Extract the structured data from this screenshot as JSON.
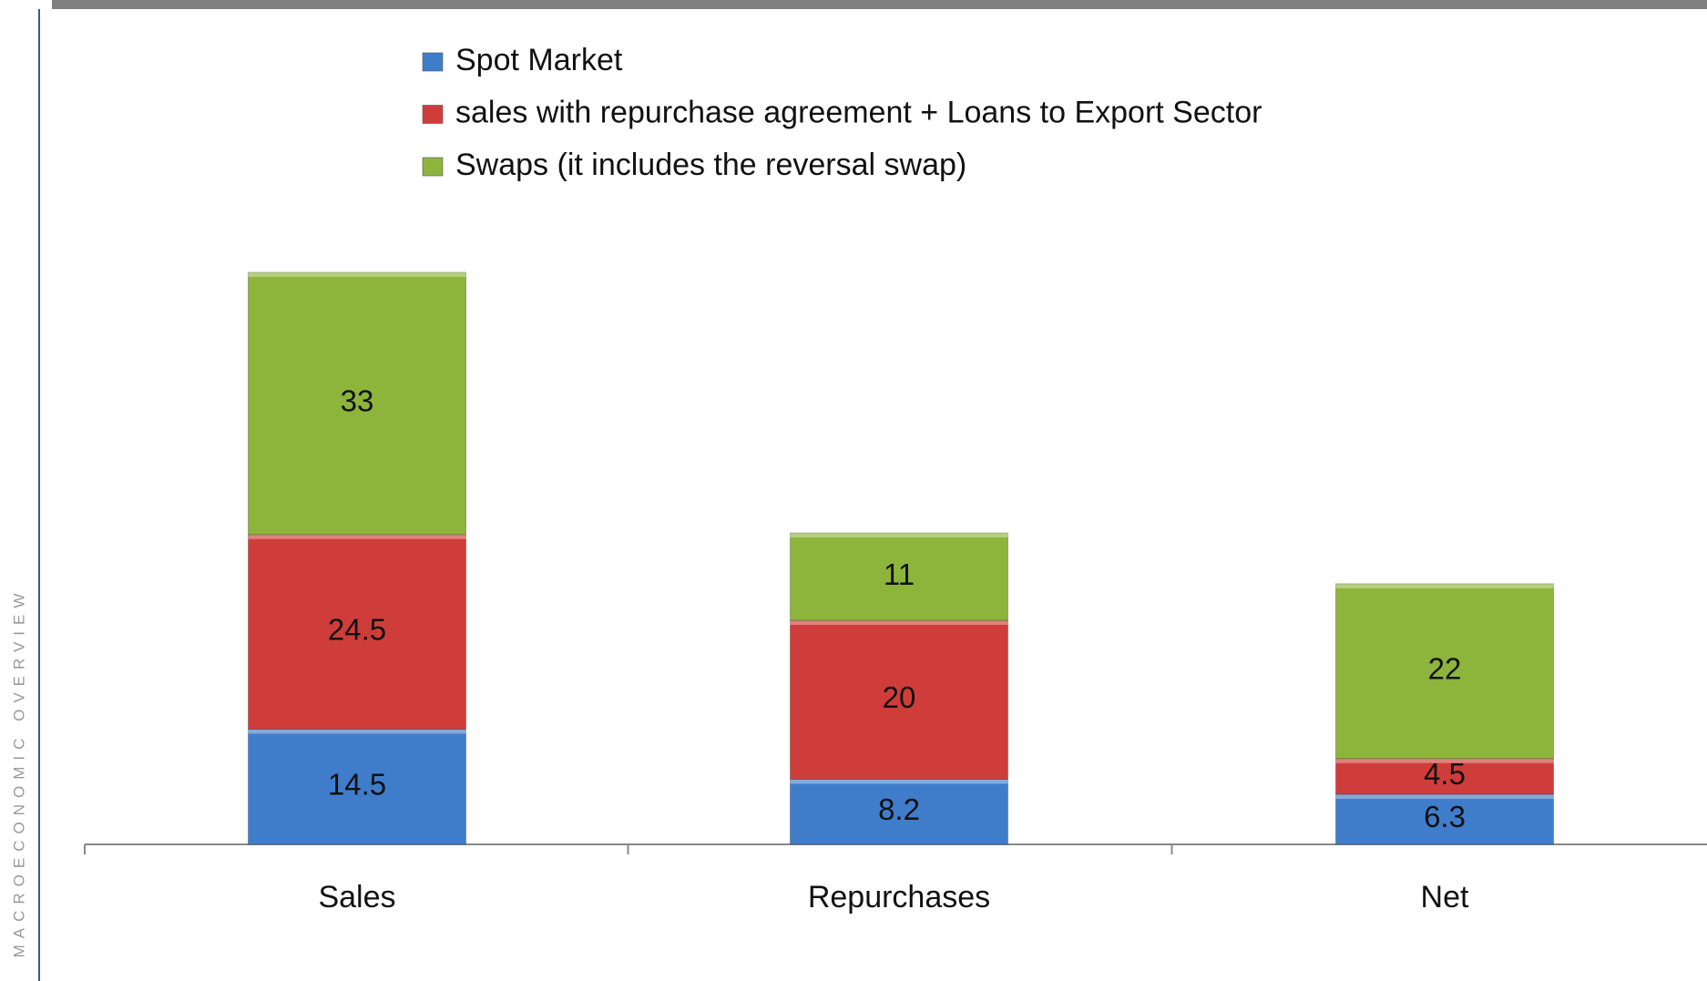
{
  "side_label": "MACROECONOMIC OVERVIEW",
  "chart_data": {
    "type": "stacked_bar",
    "categories": [
      "Sales",
      "Repurchases",
      "Net"
    ],
    "series": [
      {
        "name": "Spot Market",
        "color": "#3f7dcb",
        "values": [
          14.5,
          8.2,
          6.3
        ]
      },
      {
        "name": "sales with repurchase agreement + Loans to Export Sector",
        "color": "#cf3d3a",
        "values": [
          24.5,
          20,
          4.5
        ]
      },
      {
        "name": "Swaps (it includes the reversal swap)",
        "color": "#8db53c",
        "values": [
          33,
          11,
          22
        ]
      }
    ]
  }
}
